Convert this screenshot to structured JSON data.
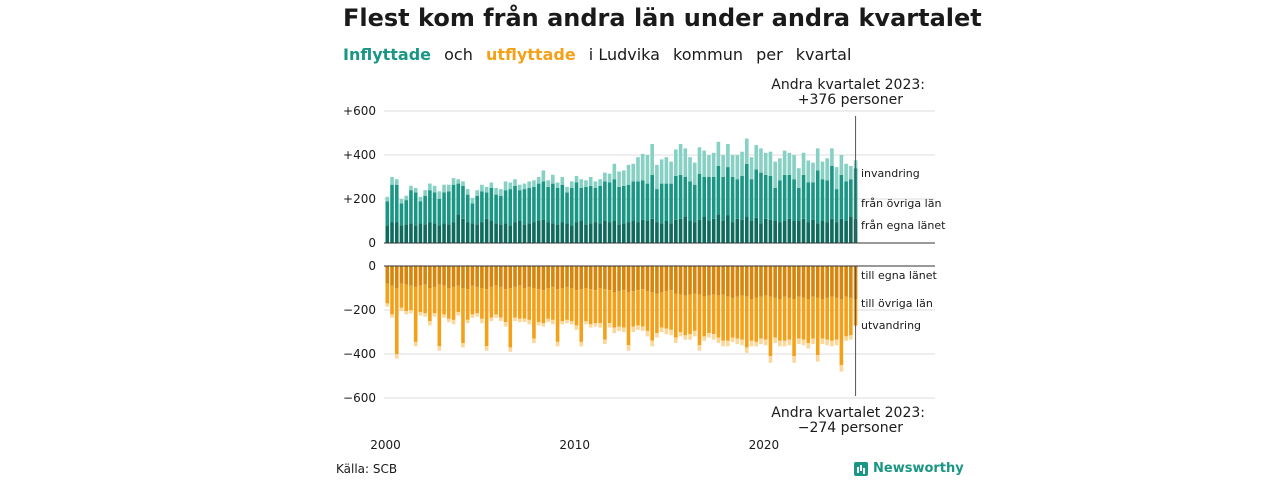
{
  "title": "Flest kom från andra län under andra kvartalet",
  "subtitle": {
    "part1": "Inflyttade",
    "part2": "och",
    "part3": "utflyttade",
    "part4": "i Ludvika",
    "part5": "kommun",
    "part6": "per",
    "part7": "kvartal"
  },
  "source": "Källa: SCB",
  "brand": "Newsworthy",
  "colors": {
    "in_dark": "#0e6b5e",
    "in_mid": "#1a9684",
    "in_light": "#86d1c4",
    "out_dark": "#d7860b",
    "out_mid": "#f4a11a",
    "out_light": "#fbd79a",
    "grid": "#dddddd"
  },
  "chart_data": {
    "type": "bar",
    "stacked": true,
    "title": "Flest kom från andra län under andra kvartalet",
    "x_start_year": 2000,
    "x_ticks": [
      "2000",
      "2010",
      "2020"
    ],
    "top": {
      "ylim": [
        0,
        600
      ],
      "yticks": [
        "+600",
        "+400",
        "+200",
        "0"
      ],
      "annotation": [
        "Andra kvartalet 2023:",
        "+376 personer"
      ],
      "series": [
        {
          "name": "från egna länet",
          "values": [
            80,
            95,
            95,
            80,
            85,
            90,
            80,
            90,
            85,
            95,
            90,
            80,
            90,
            85,
            95,
            130,
            110,
            95,
            90,
            85,
            95,
            110,
            100,
            90,
            85,
            90,
            80,
            95,
            100,
            85,
            90,
            95,
            100,
            105,
            95,
            90,
            85,
            95,
            90,
            80,
            95,
            100,
            85,
            90,
            95,
            90,
            100,
            95,
            100,
            85,
            90,
            95,
            100,
            95,
            105,
            100,
            110,
            95,
            90,
            100,
            90,
            105,
            110,
            120,
            100,
            95,
            105,
            120,
            100,
            110,
            130,
            100,
            125,
            95,
            110,
            105,
            120,
            100,
            115,
            90,
            110,
            105,
            100,
            95,
            100,
            110,
            100,
            100,
            110,
            95,
            105,
            90,
            100,
            95,
            110,
            95,
            110,
            100,
            120,
            110
          ]
        },
        {
          "name": "från övriga län",
          "values": [
            110,
            170,
            170,
            100,
            110,
            150,
            150,
            100,
            130,
            145,
            140,
            120,
            140,
            150,
            170,
            140,
            150,
            125,
            90,
            130,
            140,
            120,
            150,
            130,
            130,
            150,
            165,
            165,
            140,
            160,
            160,
            160,
            170,
            175,
            160,
            180,
            165,
            170,
            140,
            170,
            180,
            150,
            170,
            170,
            155,
            170,
            180,
            180,
            190,
            170,
            170,
            170,
            180,
            185,
            180,
            170,
            200,
            150,
            180,
            170,
            180,
            200,
            200,
            180,
            180,
            170,
            210,
            180,
            200,
            190,
            220,
            200,
            220,
            205,
            180,
            200,
            240,
            190,
            220,
            230,
            200,
            200,
            150,
            190,
            210,
            200,
            190,
            150,
            200,
            180,
            170,
            240,
            190,
            190,
            240,
            150,
            200,
            180,
            170,
            230
          ]
        },
        {
          "name": "invandring",
          "values": [
            20,
            35,
            25,
            20,
            20,
            20,
            20,
            20,
            25,
            30,
            30,
            35,
            35,
            30,
            30,
            20,
            20,
            25,
            25,
            25,
            30,
            25,
            25,
            30,
            30,
            40,
            30,
            30,
            25,
            25,
            30,
            30,
            30,
            50,
            30,
            40,
            25,
            35,
            25,
            30,
            30,
            40,
            30,
            40,
            30,
            30,
            40,
            40,
            70,
            70,
            70,
            90,
            80,
            110,
            120,
            130,
            140,
            110,
            110,
            120,
            100,
            120,
            140,
            130,
            110,
            100,
            120,
            120,
            100,
            110,
            110,
            100,
            105,
            100,
            110,
            110,
            115,
            100,
            110,
            110,
            100,
            110,
            120,
            100,
            110,
            100,
            110,
            90,
            100,
            100,
            90,
            100,
            80,
            100,
            80,
            100,
            90,
            80,
            60,
            36
          ]
        }
      ]
    },
    "bottom": {
      "ylim": [
        -600,
        0
      ],
      "yticks": [
        "0",
        "−200",
        "−400",
        "−600"
      ],
      "annotation": [
        "Andra kvartalet 2023:",
        "−274 personer"
      ],
      "series": [
        {
          "name": "till egna länet",
          "values": [
            -80,
            -90,
            -100,
            -80,
            -85,
            -90,
            -95,
            -90,
            -85,
            -100,
            -95,
            -85,
            -90,
            -100,
            -95,
            -90,
            -100,
            -105,
            -90,
            -95,
            -100,
            -105,
            -95,
            -90,
            -95,
            -105,
            -100,
            -95,
            -90,
            -100,
            -95,
            -100,
            -105,
            -110,
            -100,
            -95,
            -105,
            -100,
            -95,
            -100,
            -110,
            -105,
            -100,
            -105,
            -110,
            -100,
            -105,
            -110,
            -120,
            -115,
            -110,
            -120,
            -115,
            -110,
            -105,
            -115,
            -120,
            -125,
            -120,
            -115,
            -110,
            -125,
            -130,
            -135,
            -130,
            -125,
            -130,
            -140,
            -135,
            -130,
            -135,
            -130,
            -140,
            -145,
            -140,
            -135,
            -140,
            -150,
            -145,
            -140,
            -135,
            -140,
            -145,
            -150,
            -140,
            -145,
            -150,
            -140,
            -145,
            -150,
            -140,
            -145,
            -150,
            -145,
            -140,
            -145,
            -150,
            -140,
            -145,
            -150
          ]
        },
        {
          "name": "till övriga län",
          "values": [
            -90,
            -130,
            -300,
            -110,
            -120,
            -110,
            -250,
            -120,
            -130,
            -150,
            -120,
            -280,
            -130,
            -140,
            -150,
            -120,
            -250,
            -140,
            -130,
            -120,
            -140,
            -260,
            -140,
            -130,
            -140,
            -150,
            -270,
            -140,
            -150,
            -140,
            -150,
            -230,
            -150,
            -150,
            -140,
            -150,
            -240,
            -150,
            -150,
            -150,
            -160,
            -240,
            -150,
            -160,
            -150,
            -160,
            -230,
            -150,
            -160,
            -160,
            -170,
            -240,
            -160,
            -160,
            -170,
            -180,
            -220,
            -180,
            -160,
            -170,
            -180,
            -200,
            -170,
            -180,
            -180,
            -170,
            -230,
            -180,
            -170,
            -180,
            -190,
            -210,
            -200,
            -180,
            -190,
            -200,
            -230,
            -190,
            -200,
            -190,
            -200,
            -270,
            -180,
            -190,
            -200,
            -190,
            -260,
            -190,
            -190,
            -200,
            -190,
            -260,
            -180,
            -190,
            -200,
            -190,
            -300,
            -180,
            -170,
            -120
          ]
        },
        {
          "name": "utvandring",
          "values": [
            -15,
            -15,
            -20,
            -15,
            -15,
            -15,
            -20,
            -15,
            -15,
            -20,
            -15,
            -20,
            -15,
            -15,
            -20,
            -15,
            -20,
            -15,
            -15,
            -15,
            -20,
            -20,
            -15,
            -15,
            -15,
            -20,
            -20,
            -15,
            -15,
            -15,
            -20,
            -20,
            -15,
            -15,
            -15,
            -20,
            -20,
            -15,
            -15,
            -15,
            -20,
            -20,
            -15,
            -15,
            -15,
            -20,
            -20,
            -20,
            -25,
            -20,
            -20,
            -25,
            -25,
            -20,
            -20,
            -25,
            -25,
            -20,
            -20,
            -25,
            -25,
            -25,
            -20,
            -20,
            -25,
            -25,
            -25,
            -20,
            -20,
            -25,
            -25,
            -25,
            -25,
            -20,
            -25,
            -25,
            -25,
            -25,
            -20,
            -25,
            -25,
            -30,
            -25,
            -25,
            -25,
            -25,
            -30,
            -25,
            -25,
            -25,
            -25,
            -30,
            -25,
            -25,
            -25,
            -25,
            -30,
            -20,
            -20,
            -4
          ]
        }
      ]
    }
  }
}
